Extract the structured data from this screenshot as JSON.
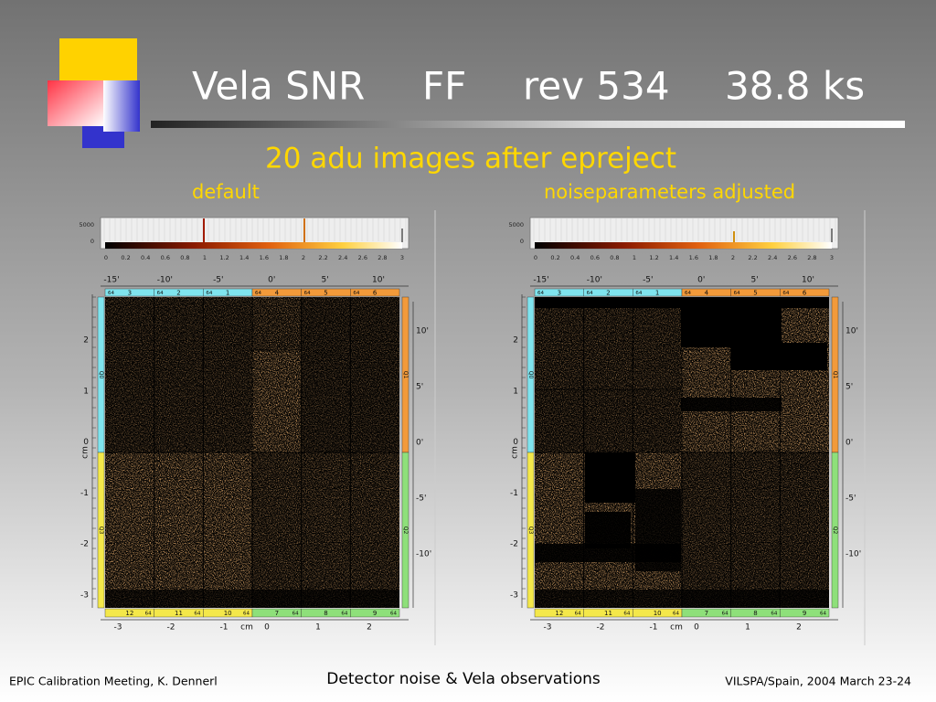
{
  "header": {
    "title_parts": [
      "Vela SNR",
      "FF",
      "rev 534",
      "38.8 ks"
    ],
    "subtitle": "20 adu images after epreject"
  },
  "panels": [
    {
      "label": "default"
    },
    {
      "label": "noiseparameters adjusted"
    }
  ],
  "detector_axes": {
    "histogram_ticks": [
      "5000",
      "0"
    ],
    "colorbar_ticks": [
      "0",
      "0.2",
      "0.4",
      "0.6",
      "0.8",
      "1",
      "1.2",
      "1.4",
      "1.6",
      "1.8",
      "2",
      "2.2",
      "2.4",
      "2.6",
      "2.8",
      "3"
    ],
    "top_arcmin": [
      "-15'",
      "-10'",
      "-5'",
      "0'",
      "5'",
      "10'"
    ],
    "top_ccds": [
      {
        "channels": "64",
        "ccd": "3"
      },
      {
        "channels": "64",
        "ccd": "2"
      },
      {
        "channels": "64",
        "ccd": "1"
      },
      {
        "channels": "64",
        "ccd": "4"
      },
      {
        "channels": "64",
        "ccd": "5"
      },
      {
        "channels": "64",
        "ccd": "6"
      }
    ],
    "left_cm": [
      "2",
      "1",
      "0",
      "-1",
      "-2",
      "-3"
    ],
    "left_unit": "cm",
    "left_quadrants": [
      "Q0",
      "Q3"
    ],
    "right_arcmin": [
      "10'",
      "5'",
      "0'",
      "-5'",
      "-10'"
    ],
    "right_quadrants": [
      "Q1",
      "Q2"
    ],
    "bottom_ccds": [
      {
        "channels": "64",
        "ccd": "12"
      },
      {
        "channels": "64",
        "ccd": "11"
      },
      {
        "channels": "64",
        "ccd": "10"
      },
      {
        "channels": "64",
        "ccd": "7"
      },
      {
        "channels": "64",
        "ccd": "8"
      },
      {
        "channels": "64",
        "ccd": "9"
      }
    ],
    "bottom_cm": [
      "-3",
      "-2",
      "-1",
      "0",
      "1",
      "2"
    ],
    "bottom_unit": "cm"
  },
  "footer": {
    "left": "EPIC Calibration Meeting, K. Dennerl",
    "center": "Detector noise & Vela observations",
    "right": "VILSPA/Spain, 2004 March 23-24"
  }
}
